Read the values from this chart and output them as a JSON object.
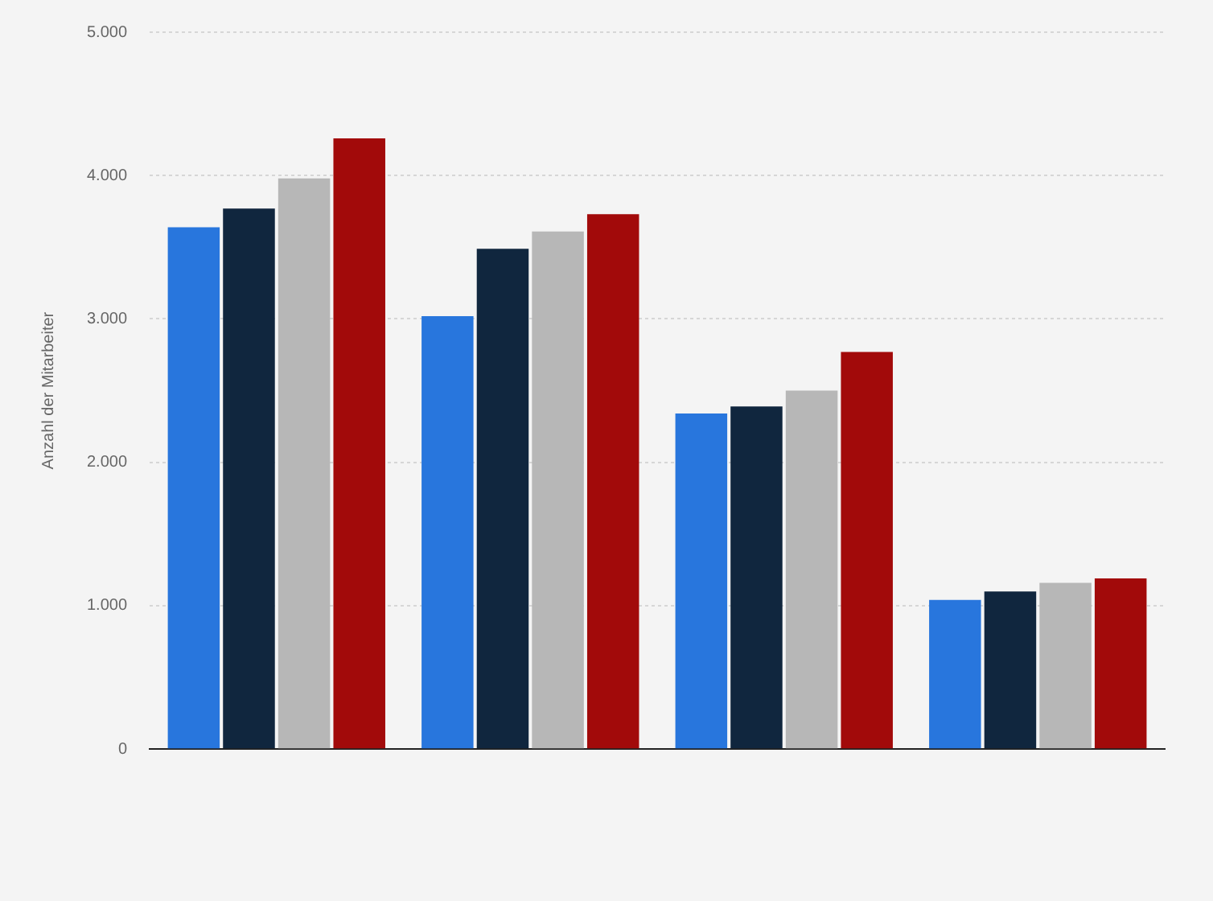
{
  "chart_data": {
    "type": "bar",
    "ylabel": "Anzahl der Mitarbeiter",
    "categories": [
      null,
      null,
      null,
      null
    ],
    "series": [
      {
        "color": "#2876dd",
        "values": [
          3640,
          3020,
          2340,
          1040
        ]
      },
      {
        "color": "#10263e",
        "values": [
          3770,
          3490,
          2390,
          1100
        ]
      },
      {
        "color": "#b7b7b7",
        "values": [
          3980,
          3610,
          2500,
          1160
        ]
      },
      {
        "color": "#a20a0a",
        "values": [
          4260,
          3730,
          2770,
          1190
        ]
      }
    ],
    "ylim": [
      0,
      5000
    ],
    "yticks": [
      0,
      {
        "value": 1000,
        "label": "1.000"
      },
      {
        "value": 2000,
        "label": "2.000"
      },
      {
        "value": 3000,
        "label": "3.000"
      },
      {
        "value": 4000,
        "label": "4.000"
      },
      {
        "value": 5000,
        "label": "5.000"
      }
    ],
    "grid": "y",
    "legend": false
  }
}
